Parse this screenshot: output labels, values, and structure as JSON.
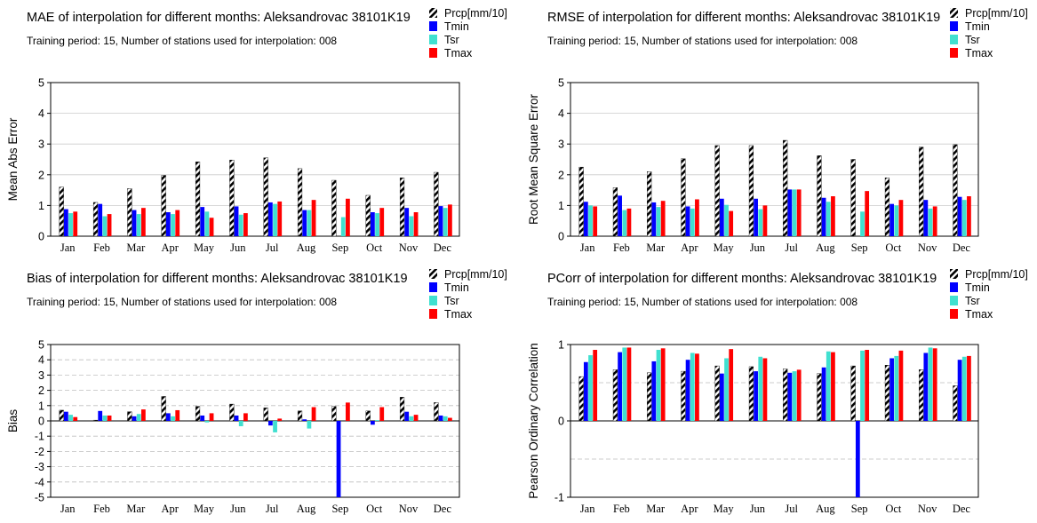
{
  "legend_labels": [
    "Prcp[mm/10]",
    "Tmin",
    "Tsr",
    "Tmax"
  ],
  "colors": {
    "Prcp": "hatch-black",
    "Tmin": "#0000ff",
    "Tsr": "#40e0d0",
    "Tmax": "#ff0000"
  },
  "chart_data": [
    {
      "type": "bar",
      "title": "MAE of interpolation for different months: Aleksandrovac  38101K19",
      "subtitle": "Training period: 15, Number of stations used for interpolation: 008",
      "ylabel": "Mean Abs Error",
      "ylim": [
        0,
        5
      ],
      "yticks": [
        "0",
        "1",
        "2",
        "3",
        "4",
        "5"
      ],
      "categories": [
        "Jan",
        "Feb",
        "Mar",
        "Apr",
        "May",
        "Jun",
        "Jul",
        "Aug",
        "Sep",
        "Oct",
        "Nov",
        "Dec"
      ],
      "series": [
        {
          "name": "Prcp[mm/10]",
          "values": [
            1.6,
            1.1,
            1.55,
            1.98,
            2.42,
            2.48,
            2.55,
            2.2,
            1.82,
            1.33,
            1.9,
            2.08
          ]
        },
        {
          "name": "Tmin",
          "values": [
            0.88,
            1.05,
            0.85,
            0.78,
            0.95,
            0.97,
            1.1,
            0.85,
            0,
            0.78,
            0.92,
            0.98
          ]
        },
        {
          "name": "Tsr",
          "values": [
            0.75,
            0.65,
            0.72,
            0.72,
            0.8,
            0.7,
            1.05,
            0.85,
            0.62,
            0.75,
            0.65,
            0.92
          ]
        },
        {
          "name": "Tmax",
          "values": [
            0.8,
            0.72,
            0.92,
            0.85,
            0.6,
            0.75,
            1.13,
            1.18,
            1.22,
            0.92,
            0.78,
            1.03
          ]
        }
      ]
    },
    {
      "type": "bar",
      "title": "RMSE of interpolation for different months: Aleksandrovac  38101K19",
      "subtitle": "Training period: 15, Number of stations used for interpolation: 008",
      "ylabel": "Root Mean Square Error",
      "ylim": [
        0,
        5
      ],
      "yticks": [
        "0",
        "1",
        "2",
        "3",
        "4",
        "5"
      ],
      "categories": [
        "Jan",
        "Feb",
        "Mar",
        "Apr",
        "May",
        "Jun",
        "Jul",
        "Aug",
        "Sep",
        "Oct",
        "Nov",
        "Dec"
      ],
      "series": [
        {
          "name": "Prcp[mm/10]",
          "values": [
            2.25,
            1.58,
            2.1,
            2.52,
            2.95,
            2.95,
            3.12,
            2.62,
            2.5,
            1.9,
            2.9,
            2.98
          ]
        },
        {
          "name": "Tmin",
          "values": [
            1.12,
            1.32,
            1.1,
            0.97,
            1.22,
            1.22,
            1.52,
            1.25,
            0,
            1.05,
            1.18,
            1.28
          ]
        },
        {
          "name": "Tsr",
          "values": [
            1.0,
            0.85,
            0.95,
            0.9,
            1.02,
            0.88,
            1.52,
            1.12,
            0.8,
            1.0,
            0.9,
            1.18
          ]
        },
        {
          "name": "Tmax",
          "values": [
            0.97,
            0.9,
            1.15,
            1.2,
            0.82,
            1.0,
            1.52,
            1.3,
            1.47,
            1.18,
            0.97,
            1.3
          ]
        }
      ]
    },
    {
      "type": "bar",
      "title": "Bias of interpolation for different months: Aleksandrovac  38101K19",
      "subtitle": "Training period: 15, Number of stations used for interpolation: 008",
      "ylabel": "Bias",
      "ylim": [
        -5,
        5
      ],
      "yticks": [
        "-5",
        "-4",
        "-3",
        "-2",
        "-1",
        "0",
        "1",
        "2",
        "3",
        "4",
        "5"
      ],
      "categories": [
        "Jan",
        "Feb",
        "Mar",
        "Apr",
        "May",
        "Jun",
        "Jul",
        "Aug",
        "Sep",
        "Oct",
        "Nov",
        "Dec"
      ],
      "series": [
        {
          "name": "Prcp[mm/10]",
          "values": [
            0.7,
            0.05,
            0.6,
            1.6,
            0.95,
            1.1,
            0.85,
            0.65,
            0.95,
            0.65,
            1.55,
            1.2
          ]
        },
        {
          "name": "Tmin",
          "values": [
            0.6,
            0.65,
            0.3,
            0.5,
            0.35,
            0.35,
            -0.3,
            0.1,
            -5.0,
            -0.25,
            0.6,
            0.35
          ]
        },
        {
          "name": "Tsr",
          "values": [
            0.4,
            0.35,
            0.45,
            0.3,
            -0.1,
            -0.35,
            -0.75,
            -0.5,
            0.0,
            0.05,
            0.3,
            0.3
          ]
        },
        {
          "name": "Tmax",
          "values": [
            0.25,
            0.35,
            0.75,
            0.7,
            0.5,
            0.5,
            0.15,
            0.9,
            1.2,
            0.9,
            0.4,
            0.2
          ]
        }
      ]
    },
    {
      "type": "bar",
      "title": "PCorr of interpolation for different months: Aleksandrovac  38101K19",
      "subtitle": "Training period: 15, Number of stations used for interpolation: 008",
      "ylabel": "Pearson Ordinary Correlation",
      "ylim": [
        -1,
        1
      ],
      "yticks": [
        "-1",
        "0",
        "1"
      ],
      "categories": [
        "Jan",
        "Feb",
        "Mar",
        "Apr",
        "May",
        "Jun",
        "Jul",
        "Aug",
        "Sep",
        "Oct",
        "Nov",
        "Dec"
      ],
      "series": [
        {
          "name": "Prcp[mm/10]",
          "values": [
            0.58,
            0.67,
            0.63,
            0.65,
            0.72,
            0.71,
            0.68,
            0.62,
            0.72,
            0.73,
            0.67,
            0.46
          ]
        },
        {
          "name": "Tmin",
          "values": [
            0.77,
            0.9,
            0.78,
            0.8,
            0.62,
            0.65,
            0.63,
            0.7,
            -1.0,
            0.82,
            0.89,
            0.8
          ]
        },
        {
          "name": "Tsr",
          "values": [
            0.86,
            0.96,
            0.93,
            0.89,
            0.82,
            0.84,
            0.65,
            0.91,
            0.92,
            0.85,
            0.96,
            0.84
          ]
        },
        {
          "name": "Tmax",
          "values": [
            0.93,
            0.96,
            0.95,
            0.88,
            0.94,
            0.82,
            0.67,
            0.9,
            0.93,
            0.92,
            0.95,
            0.85
          ]
        }
      ]
    }
  ]
}
